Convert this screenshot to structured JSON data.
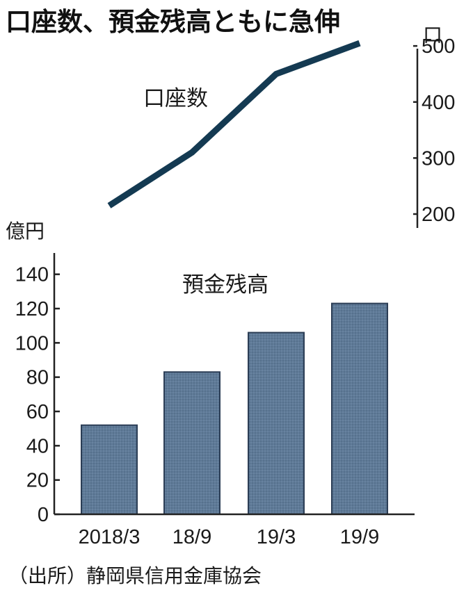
{
  "title": "口座数、預金残高ともに急伸",
  "source": "（出所）静岡県信用金庫協会",
  "colors": {
    "line": "#143a52",
    "bar": "#5f7a97",
    "bar_stroke": "#2b3d55",
    "axis": "#222222"
  },
  "chart_data": [
    {
      "type": "line",
      "series": [
        {
          "name": "口座数",
          "values": [
            215,
            310,
            450,
            505
          ]
        }
      ],
      "categories": [
        "2018/3",
        "18/9",
        "19/3",
        "19/9"
      ],
      "unit": "口",
      "ylim": [
        200,
        520
      ],
      "yticks": [
        200,
        300,
        400,
        500
      ],
      "axis_side": "right",
      "grid": false,
      "legend": "none"
    },
    {
      "type": "bar",
      "series": [
        {
          "name": "預金残高",
          "values": [
            52,
            83,
            106,
            123
          ]
        }
      ],
      "categories": [
        "2018/3",
        "18/9",
        "19/3",
        "19/9"
      ],
      "unit": "億円",
      "ylim": [
        0,
        150
      ],
      "yticks": [
        0,
        20,
        40,
        60,
        80,
        100,
        120,
        140
      ],
      "axis_side": "left",
      "grid": false,
      "legend": "none"
    }
  ]
}
